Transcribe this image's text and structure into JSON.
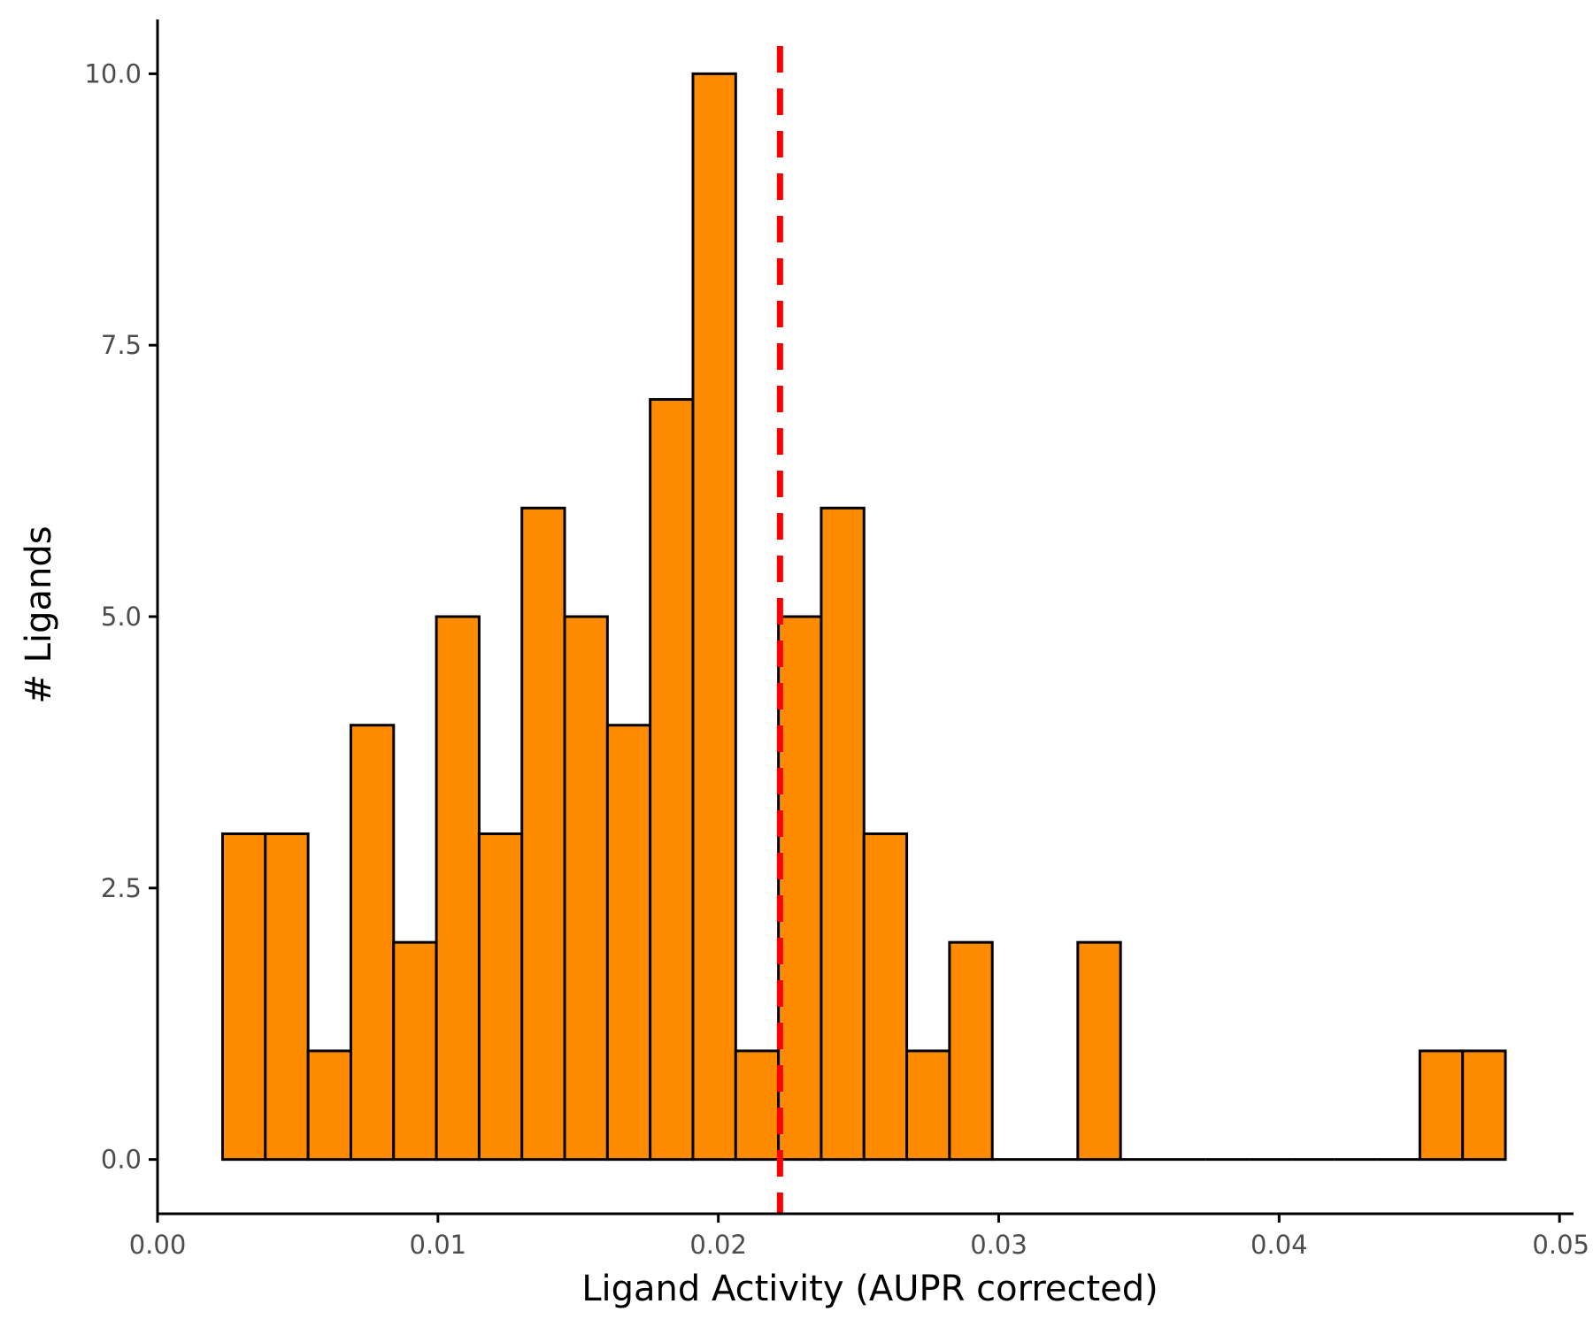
{
  "chart_data": {
    "type": "bar",
    "title": "",
    "xlabel": "Ligand Activity (AUPR corrected)",
    "ylabel": "# Ligands",
    "xlim": [
      0.0,
      0.0505
    ],
    "ylim": [
      -0.5,
      10.5
    ],
    "x_ticks": [
      {
        "value": 0.0,
        "label": "0.00"
      },
      {
        "value": 0.01,
        "label": "0.01"
      },
      {
        "value": 0.02,
        "label": "0.02"
      },
      {
        "value": 0.03,
        "label": "0.03"
      },
      {
        "value": 0.04,
        "label": "0.04"
      },
      {
        "value": 0.05,
        "label": "0.05"
      }
    ],
    "y_ticks": [
      {
        "value": 0.0,
        "label": "0.0"
      },
      {
        "value": 2.5,
        "label": "2.5"
      },
      {
        "value": 5.0,
        "label": "5.0"
      },
      {
        "value": 7.5,
        "label": "7.5"
      },
      {
        "value": 10.0,
        "label": "10.0"
      }
    ],
    "bins": {
      "start": 0.00232,
      "width": 0.001525,
      "counts": [
        3,
        3,
        1,
        4,
        2,
        5,
        3,
        6,
        5,
        4,
        7,
        10,
        1,
        5,
        6,
        3,
        1,
        2,
        0,
        0,
        2,
        0,
        0,
        0,
        0,
        0,
        0,
        0,
        1,
        1
      ]
    },
    "threshold": {
      "value": 0.0222,
      "style": "dashed"
    },
    "grid": false,
    "colors": {
      "bar_fill": "#ff8c00",
      "bar_stroke": "#000000",
      "threshold": "#ff0000"
    }
  }
}
